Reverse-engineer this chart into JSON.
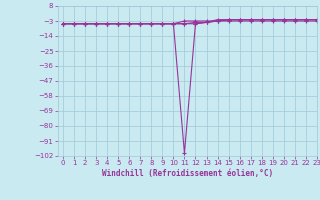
{
  "xlabel": "Windchill (Refroidissement éolien,°C)",
  "bg_color": "#c8eaf0",
  "grid_color": "#a0c8d8",
  "line_color": "#993399",
  "x_data": [
    0,
    1,
    2,
    3,
    4,
    5,
    6,
    7,
    8,
    9,
    10,
    11,
    12,
    13,
    14,
    15,
    16,
    17,
    18,
    19,
    20,
    21,
    22,
    23
  ],
  "y_line1": [
    -5,
    -5,
    -5,
    -5,
    -5,
    -5,
    -5,
    -5,
    -5,
    -5,
    -5,
    -5,
    -4,
    -4,
    -3,
    -3,
    -3,
    -3,
    -3,
    -3,
    -3,
    -3,
    -3,
    -3
  ],
  "y_line2": [
    -5,
    -5,
    -5,
    -5,
    -5,
    -5,
    -5,
    -5,
    -5,
    -5,
    -5,
    -3,
    -3,
    -3,
    -3,
    -2,
    -2,
    -2,
    -2,
    -2,
    -2,
    -2,
    -2,
    -2
  ],
  "y_line3": [
    -5,
    -5,
    -5,
    -5,
    -5,
    -5,
    -5,
    -5,
    -5,
    -5,
    -5,
    -100,
    -5,
    -4,
    -3,
    -2,
    -2,
    -2,
    -2,
    -2,
    -2,
    -2,
    -2,
    -2
  ],
  "y_line4": [
    -5,
    -5,
    -5,
    -5,
    -5,
    -5,
    -5,
    -5,
    -5,
    -5,
    -5,
    -5,
    -5,
    -4,
    -2,
    -2,
    -2,
    -2,
    -2,
    -2,
    -2,
    -2,
    -2,
    -2
  ],
  "ylim": [
    -102,
    8
  ],
  "xlim": [
    -0.5,
    23
  ],
  "yticks": [
    8,
    -3,
    -14,
    -25,
    -36,
    -47,
    -58,
    -69,
    -80,
    -91,
    -102
  ],
  "xticks": [
    0,
    1,
    2,
    3,
    4,
    5,
    6,
    7,
    8,
    9,
    10,
    11,
    12,
    13,
    14,
    15,
    16,
    17,
    18,
    19,
    20,
    21,
    22,
    23
  ],
  "tick_fontsize": 5,
  "xlabel_fontsize": 5.5,
  "lw": 0.8,
  "ms": 3
}
